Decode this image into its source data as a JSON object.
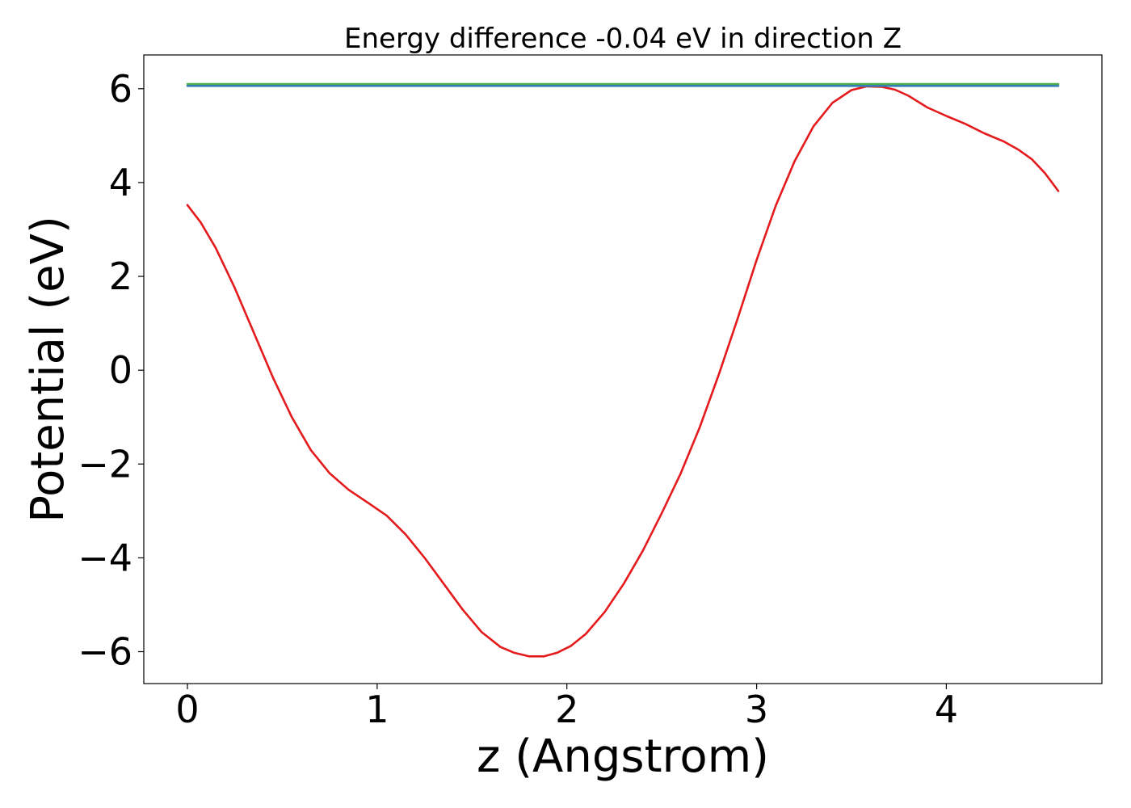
{
  "chart_data": {
    "type": "line",
    "title": "Energy difference -0.04 eV in direction Z",
    "xlabel": "z (Angstrom)",
    "ylabel": "Potential (eV)",
    "xlim": [
      -0.23,
      4.82
    ],
    "ylim": [
      -6.68,
      6.72
    ],
    "xticks": [
      0,
      1,
      2,
      3,
      4
    ],
    "yticks": [
      -6,
      -4,
      -2,
      0,
      2,
      4,
      6
    ],
    "grid": false,
    "series": [
      {
        "color": "#e41a1c",
        "x": [
          0,
          0.07,
          0.15,
          0.25,
          0.35,
          0.45,
          0.55,
          0.65,
          0.75,
          0.85,
          0.95,
          1.05,
          1.15,
          1.25,
          1.35,
          1.45,
          1.55,
          1.65,
          1.72,
          1.8,
          1.88,
          1.95,
          2.02,
          2.1,
          2.2,
          2.3,
          2.4,
          2.5,
          2.6,
          2.7,
          2.8,
          2.9,
          3.0,
          3.1,
          3.2,
          3.3,
          3.4,
          3.5,
          3.58,
          3.66,
          3.73,
          3.8,
          3.9,
          4.0,
          4.1,
          4.2,
          4.3,
          4.38,
          4.45,
          4.52,
          4.59
        ],
        "y": [
          3.52,
          3.15,
          2.6,
          1.75,
          0.8,
          -0.15,
          -1.0,
          -1.7,
          -2.2,
          -2.55,
          -2.82,
          -3.1,
          -3.5,
          -4.0,
          -4.55,
          -5.1,
          -5.58,
          -5.9,
          -6.02,
          -6.1,
          -6.1,
          -6.02,
          -5.88,
          -5.62,
          -5.15,
          -4.55,
          -3.85,
          -3.05,
          -2.2,
          -1.22,
          -0.1,
          1.1,
          2.35,
          3.5,
          4.45,
          5.2,
          5.7,
          5.97,
          6.05,
          6.04,
          5.98,
          5.85,
          5.6,
          5.42,
          5.25,
          5.05,
          4.88,
          4.7,
          4.5,
          4.2,
          3.82
        ]
      },
      {
        "color": "#4daf4a",
        "x": [
          0,
          4.59
        ],
        "y": [
          6.1,
          6.1
        ]
      },
      {
        "color": "#377eb8",
        "x": [
          0,
          4.59
        ],
        "y": [
          6.06,
          6.06
        ]
      }
    ]
  }
}
